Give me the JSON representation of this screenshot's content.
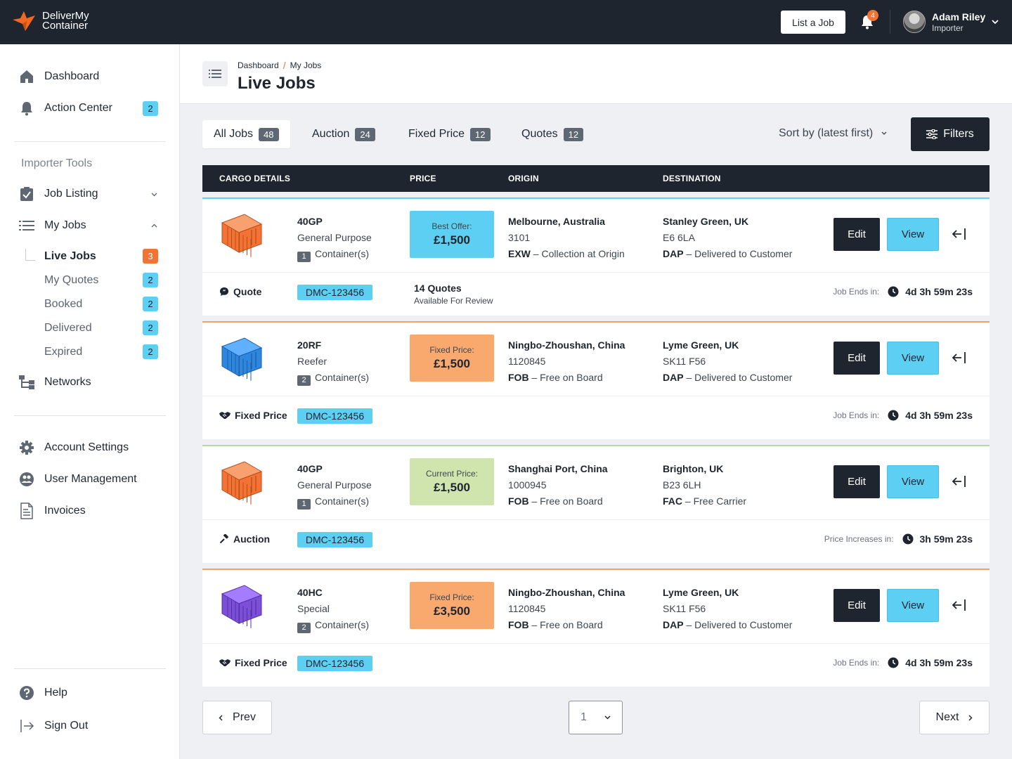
{
  "brand": {
    "line1": "DeliverMy",
    "line2": "Container"
  },
  "header": {
    "list_job_label": "List a Job",
    "notifications_count": "4",
    "user_name": "Adam Riley",
    "user_role": "Importer"
  },
  "sidebar": {
    "dashboard": "Dashboard",
    "action_center": "Action Center",
    "action_center_count": "2",
    "section_label": "Importer Tools",
    "job_listing": "Job Listing",
    "my_jobs": "My Jobs",
    "sub_items": [
      {
        "label": "Live Jobs",
        "count": "3"
      },
      {
        "label": "My Quotes",
        "count": "2"
      },
      {
        "label": "Booked",
        "count": "2"
      },
      {
        "label": "Delivered",
        "count": "2"
      },
      {
        "label": "Expired",
        "count": "2"
      }
    ],
    "networks": "Networks",
    "account_settings": "Account Settings",
    "user_management": "User Management",
    "invoices": "Invoices",
    "help": "Help",
    "sign_out": "Sign Out"
  },
  "page": {
    "breadcrumb": [
      "Dashboard",
      "My Jobs"
    ],
    "breadcrumb_sep": "/",
    "title": "Live Jobs"
  },
  "tabs": [
    {
      "label": "All Jobs",
      "count": "48"
    },
    {
      "label": "Auction",
      "count": "24"
    },
    {
      "label": "Fixed Price",
      "count": "12"
    },
    {
      "label": "Quotes",
      "count": "12"
    }
  ],
  "sort_label": "Sort by (latest first)",
  "filters_label": "Filters",
  "columns": [
    "CARGO DETAILS",
    "PRICE",
    "ORIGIN",
    "DESTINATION"
  ],
  "jobs": [
    {
      "code": "40GP",
      "kind": "General Purpose",
      "qty": "1",
      "qty_label": "Container(s)",
      "price_label": "Best Offer:",
      "price": "£1,500",
      "origin_city": "Melbourne, Australia",
      "origin_post": "3101",
      "origin_term": "EXW",
      "origin_term_desc": "– Collection at Origin",
      "dest_city": "Stanley Green, UK",
      "dest_post": "E6 6LA",
      "dest_term": "DAP",
      "dest_term_desc": "– Delivered to Customer",
      "edit": "Edit",
      "view": "View",
      "type": "Quote",
      "ref": "DMC-123456",
      "quotes_count": "14 Quotes",
      "quotes_sub": "Available For Review",
      "timer_label": "Job Ends in:",
      "timer": "4d 3h 59m 23s",
      "accent": "#5ccff3",
      "price_bg": "#5ccff3",
      "container_color": "#f37335"
    },
    {
      "code": "20RF",
      "kind": "Reefer",
      "qty": "2",
      "qty_label": "Container(s)",
      "price_label": "Fixed Price:",
      "price": "£1,500",
      "origin_city": "Ningbo-Zhoushan, China",
      "origin_post": "1120845",
      "origin_term": "FOB",
      "origin_term_desc": "– Free on Board",
      "dest_city": "Lyme Green, UK",
      "dest_post": "SK11 F56",
      "dest_term": "DAP",
      "dest_term_desc": "– Delivered to Customer",
      "edit": "Edit",
      "view": "View",
      "type": "Fixed Price",
      "ref": "DMC-123456",
      "timer_label": "Job Ends in:",
      "timer": "4d 3h 59m 23s",
      "accent": "#f3a26a",
      "price_bg": "#f9a86e",
      "container_color": "#2e86de"
    },
    {
      "code": "40GP",
      "kind": "General Purpose",
      "qty": "1",
      "qty_label": "Container(s)",
      "price_label": "Current Price:",
      "price": "£1,500",
      "origin_city": "Shanghai Port, China",
      "origin_post": "1000945",
      "origin_term": "FOB",
      "origin_term_desc": "– Free on Board",
      "dest_city": "Brighton, UK",
      "dest_post": "B23 6LH",
      "dest_term": "FAC",
      "dest_term_desc": "– Free Carrier",
      "edit": "Edit",
      "view": "View",
      "type": "Auction",
      "ref": "DMC-123456",
      "timer_label": "Price Increases in:",
      "timer": "3h 59m 23s",
      "accent": "#b9d89a",
      "price_bg": "#cfe5ad",
      "container_color": "#f37335"
    },
    {
      "code": "40HC",
      "kind": "Special",
      "qty": "2",
      "qty_label": "Container(s)",
      "price_label": "Fixed Price:",
      "price": "£3,500",
      "origin_city": "Ningbo-Zhoushan, China",
      "origin_post": "1120845",
      "origin_term": "FOB",
      "origin_term_desc": "– Free on Board",
      "dest_city": "Lyme Green, UK",
      "dest_post": "SK11 F56",
      "dest_term": "DAP",
      "dest_term_desc": "– Delivered to Customer",
      "edit": "Edit",
      "view": "View",
      "type": "Fixed Price",
      "ref": "DMC-123456",
      "timer_label": "Job Ends in:",
      "timer": "4d 3h 59m 23s",
      "accent": "#f3a26a",
      "price_bg": "#f9a86e",
      "container_color": "#7b4fd6"
    }
  ],
  "pagination": {
    "prev": "Prev",
    "next": "Next",
    "page": "1"
  }
}
